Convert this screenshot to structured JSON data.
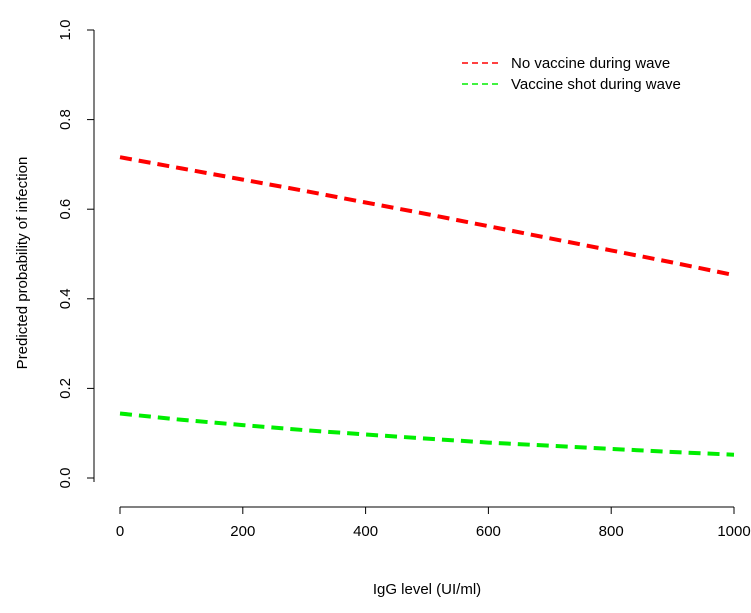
{
  "chart_data": {
    "type": "line",
    "title": "",
    "xlabel": "IgG level (UI/ml)",
    "ylabel": "Predicted probability of infection",
    "xlim": [
      0,
      1000
    ],
    "ylim": [
      0,
      1.0
    ],
    "x_ticks": [
      0,
      200,
      400,
      600,
      800,
      1000
    ],
    "y_ticks": [
      0.0,
      0.2,
      0.4,
      0.6,
      0.8,
      1.0
    ],
    "x_tick_labels": [
      "0",
      "200",
      "400",
      "600",
      "800",
      "1000"
    ],
    "y_tick_labels": [
      "0.0",
      "0.2",
      "0.4",
      "0.6",
      "0.8",
      "1.0"
    ],
    "grid": false,
    "legend_position": "top-right",
    "series": [
      {
        "name": "No vaccine during wave",
        "color": "#ff0000",
        "line_style": "dashed",
        "x": [
          0,
          100,
          200,
          300,
          400,
          500,
          600,
          700,
          800,
          900,
          1000
        ],
        "values": [
          0.716,
          0.691,
          0.666,
          0.641,
          0.615,
          0.589,
          0.562,
          0.535,
          0.508,
          0.481,
          0.453
        ]
      },
      {
        "name": "Vaccine shot during wave",
        "color": "#00ee00",
        "line_style": "dashed",
        "x": [
          0,
          100,
          200,
          300,
          400,
          500,
          600,
          700,
          800,
          900,
          1000
        ],
        "values": [
          0.144,
          0.13,
          0.118,
          0.107,
          0.097,
          0.088,
          0.079,
          0.072,
          0.065,
          0.058,
          0.052
        ]
      }
    ]
  }
}
